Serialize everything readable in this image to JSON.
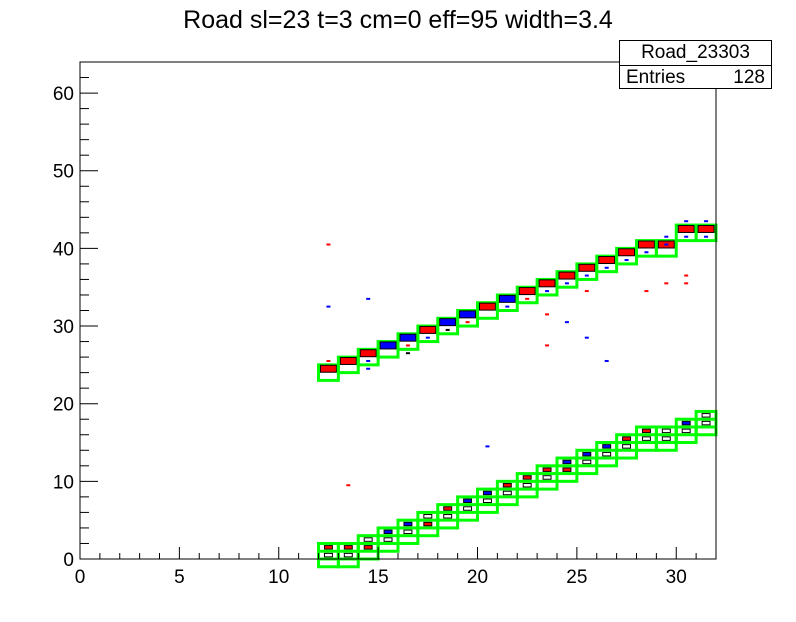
{
  "chart_data": {
    "type": "heatmap",
    "title": "Road sl=23 t=3 cm=0 eff=95 width=3.4",
    "xlabel": "",
    "ylabel": "",
    "xlim": [
      0,
      32
    ],
    "ylim": [
      0,
      64
    ],
    "x_ticks": [
      0,
      5,
      10,
      15,
      20,
      25,
      30
    ],
    "y_ticks": [
      0,
      10,
      20,
      30,
      40,
      50,
      60
    ],
    "grid": false,
    "stats": {
      "name": "Road_23303",
      "entries_label": "Entries",
      "entries": "128"
    },
    "colors": {
      "road_box": "#00ff00",
      "red_hit": "#ff0000",
      "blue_hit": "#0000ff",
      "frame": "#000000"
    },
    "upper_road": [
      {
        "x": 12,
        "y": 24,
        "c": "red"
      },
      {
        "x": 13,
        "y": 25,
        "c": "red"
      },
      {
        "x": 14,
        "y": 26,
        "c": "red"
      },
      {
        "x": 15,
        "y": 27,
        "c": "blue"
      },
      {
        "x": 16,
        "y": 28,
        "c": "blue"
      },
      {
        "x": 17,
        "y": 29,
        "c": "red"
      },
      {
        "x": 18,
        "y": 30,
        "c": "blue"
      },
      {
        "x": 19,
        "y": 31,
        "c": "blue"
      },
      {
        "x": 20,
        "y": 32,
        "c": "red"
      },
      {
        "x": 21,
        "y": 33,
        "c": "blue"
      },
      {
        "x": 22,
        "y": 34,
        "c": "red"
      },
      {
        "x": 23,
        "y": 35,
        "c": "red"
      },
      {
        "x": 24,
        "y": 36,
        "c": "red"
      },
      {
        "x": 25,
        "y": 37,
        "c": "red"
      },
      {
        "x": 26,
        "y": 38,
        "c": "red"
      },
      {
        "x": 27,
        "y": 39,
        "c": "red"
      },
      {
        "x": 28,
        "y": 40,
        "c": "red"
      },
      {
        "x": 29,
        "y": 40,
        "c": "red"
      },
      {
        "x": 30,
        "y": 42,
        "c": "red"
      },
      {
        "x": 31,
        "y": 42,
        "c": "red"
      }
    ],
    "upper_small_hits": [
      {
        "x": 12,
        "y": 25.5,
        "c": "red"
      },
      {
        "x": 14,
        "y": 24.5,
        "c": "blue"
      },
      {
        "x": 14,
        "y": 25.5,
        "c": "blue"
      },
      {
        "x": 16,
        "y": 26.5,
        "c": "black"
      },
      {
        "x": 16,
        "y": 27.5,
        "c": "red"
      },
      {
        "x": 17,
        "y": 28.5,
        "c": "blue"
      },
      {
        "x": 18,
        "y": 29.5,
        "c": "black"
      },
      {
        "x": 19,
        "y": 30.5,
        "c": "red"
      },
      {
        "x": 21,
        "y": 32.5,
        "c": "blue"
      },
      {
        "x": 22,
        "y": 33.5,
        "c": "red"
      },
      {
        "x": 23,
        "y": 34.5,
        "c": "blue"
      },
      {
        "x": 24,
        "y": 35.5,
        "c": "blue"
      },
      {
        "x": 25,
        "y": 36.5,
        "c": "blue"
      },
      {
        "x": 26,
        "y": 37.5,
        "c": "blue"
      },
      {
        "x": 27,
        "y": 38.5,
        "c": "blue"
      },
      {
        "x": 28,
        "y": 39.5,
        "c": "blue"
      },
      {
        "x": 29,
        "y": 40.5,
        "c": "blue"
      },
      {
        "x": 29,
        "y": 41.5,
        "c": "blue"
      },
      {
        "x": 30,
        "y": 41.5,
        "c": "blue"
      },
      {
        "x": 30,
        "y": 43.5,
        "c": "blue"
      },
      {
        "x": 31,
        "y": 43.5,
        "c": "blue"
      },
      {
        "x": 31,
        "y": 41.5,
        "c": "blue"
      }
    ],
    "lower_road_a": [
      {
        "x": 12,
        "y": 1,
        "c": "red"
      },
      {
        "x": 13,
        "y": 1,
        "c": "red"
      },
      {
        "x": 14,
        "y": 2,
        "c": "black"
      },
      {
        "x": 15,
        "y": 3,
        "c": "blue"
      },
      {
        "x": 16,
        "y": 4,
        "c": "blue"
      },
      {
        "x": 17,
        "y": 5,
        "c": "black"
      },
      {
        "x": 18,
        "y": 6,
        "c": "red"
      },
      {
        "x": 19,
        "y": 7,
        "c": "blue"
      },
      {
        "x": 20,
        "y": 8,
        "c": "blue"
      },
      {
        "x": 21,
        "y": 9,
        "c": "red"
      },
      {
        "x": 22,
        "y": 10,
        "c": "red"
      },
      {
        "x": 23,
        "y": 11,
        "c": "red"
      },
      {
        "x": 24,
        "y": 12,
        "c": "blue"
      },
      {
        "x": 25,
        "y": 13,
        "c": "blue"
      },
      {
        "x": 26,
        "y": 14,
        "c": "blue"
      },
      {
        "x": 27,
        "y": 15,
        "c": "red"
      },
      {
        "x": 28,
        "y": 16,
        "c": "red"
      },
      {
        "x": 29,
        "y": 16,
        "c": "black"
      },
      {
        "x": 30,
        "y": 17,
        "c": "blue"
      },
      {
        "x": 31,
        "y": 18,
        "c": "black"
      }
    ],
    "lower_road_b": [
      {
        "x": 12,
        "y": 0,
        "c": "black"
      },
      {
        "x": 13,
        "y": 0,
        "c": "black"
      },
      {
        "x": 14,
        "y": 1,
        "c": "red"
      },
      {
        "x": 15,
        "y": 2,
        "c": "black"
      },
      {
        "x": 16,
        "y": 3,
        "c": "black"
      },
      {
        "x": 17,
        "y": 4,
        "c": "red"
      },
      {
        "x": 18,
        "y": 5,
        "c": "black"
      },
      {
        "x": 19,
        "y": 6,
        "c": "black"
      },
      {
        "x": 20,
        "y": 7,
        "c": "black"
      },
      {
        "x": 21,
        "y": 8,
        "c": "black"
      },
      {
        "x": 22,
        "y": 9,
        "c": "black"
      },
      {
        "x": 23,
        "y": 10,
        "c": "black"
      },
      {
        "x": 24,
        "y": 11,
        "c": "red"
      },
      {
        "x": 25,
        "y": 12,
        "c": "black"
      },
      {
        "x": 26,
        "y": 13,
        "c": "black"
      },
      {
        "x": 27,
        "y": 14,
        "c": "black"
      },
      {
        "x": 28,
        "y": 15,
        "c": "black"
      },
      {
        "x": 29,
        "y": 15,
        "c": "black"
      },
      {
        "x": 30,
        "y": 16,
        "c": "black"
      },
      {
        "x": 31,
        "y": 17,
        "c": "black"
      }
    ],
    "outliers": [
      {
        "x": 12,
        "y": 40.5,
        "c": "red"
      },
      {
        "x": 12,
        "y": 32.5,
        "c": "blue"
      },
      {
        "x": 14,
        "y": 33.5,
        "c": "blue"
      },
      {
        "x": 13,
        "y": 9.5,
        "c": "red"
      },
      {
        "x": 20,
        "y": 14.5,
        "c": "blue"
      },
      {
        "x": 23,
        "y": 31.5,
        "c": "red"
      },
      {
        "x": 23,
        "y": 27.5,
        "c": "red"
      },
      {
        "x": 24,
        "y": 30.5,
        "c": "blue"
      },
      {
        "x": 25,
        "y": 34.5,
        "c": "red"
      },
      {
        "x": 25,
        "y": 28.5,
        "c": "blue"
      },
      {
        "x": 26,
        "y": 25.5,
        "c": "blue"
      },
      {
        "x": 28,
        "y": 34.5,
        "c": "red"
      },
      {
        "x": 29,
        "y": 35.5,
        "c": "red"
      },
      {
        "x": 30,
        "y": 35.5,
        "c": "red"
      },
      {
        "x": 30,
        "y": 36.5,
        "c": "red"
      }
    ]
  }
}
